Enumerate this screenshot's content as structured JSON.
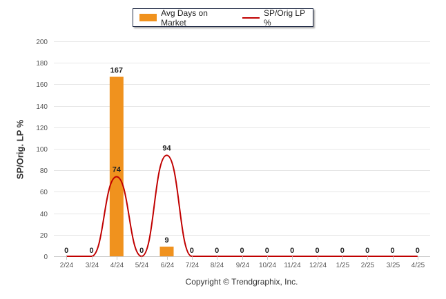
{
  "chart_data": {
    "type": "bar",
    "categories": [
      "2/24",
      "3/24",
      "4/24",
      "5/24",
      "6/24",
      "7/24",
      "8/24",
      "9/24",
      "10/24",
      "11/24",
      "12/24",
      "1/25",
      "2/25",
      "3/25",
      "4/25"
    ],
    "series": [
      {
        "name": "Avg Days on Market",
        "type": "bar",
        "color": "#f0921e",
        "values": [
          0,
          0,
          167,
          0,
          9,
          0,
          0,
          0,
          0,
          0,
          0,
          0,
          0,
          0,
          0
        ]
      },
      {
        "name": "SP/Orig LP %",
        "type": "line",
        "color": "#c00000",
        "values": [
          0,
          0,
          74,
          0,
          94,
          0,
          0,
          0,
          0,
          0,
          0,
          0,
          0,
          0,
          0
        ]
      }
    ],
    "ylabel": "SP/Orig. LP %",
    "ylim": [
      0,
      200
    ],
    "yticks": [
      0,
      20,
      40,
      60,
      80,
      100,
      120,
      140,
      160,
      180,
      200
    ],
    "grid": true,
    "legend_position": "top-center"
  },
  "footer": {
    "copyright": "Copyright © Trendgraphix, Inc."
  }
}
